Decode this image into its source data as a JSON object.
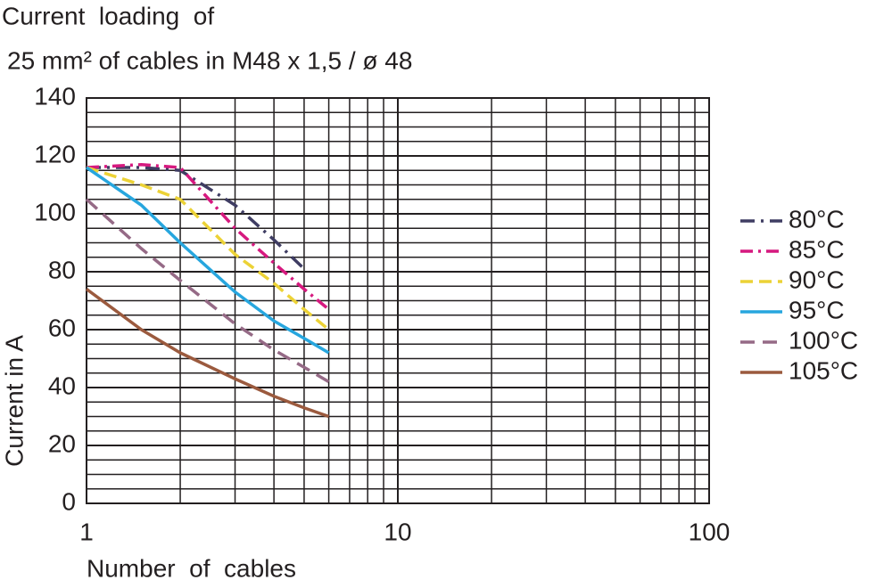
{
  "chart_data": {
    "type": "line",
    "title": "Current  loading  of",
    "subtitle": "25 mm² of cables in M48 x 1,5 / ø 48",
    "x_label": "Number  of  cables",
    "y_label": "Current in A",
    "x": [
      1,
      1.5,
      2,
      3,
      4,
      5,
      6
    ],
    "series": [
      {
        "name": "80°C",
        "color": "#3f3d63",
        "dash": "16 7 3 7",
        "values": [
          116,
          116,
          115,
          103,
          91,
          81,
          null
        ]
      },
      {
        "name": "85°C",
        "color": "#d6197f",
        "dash": "14 6 3 6",
        "values": [
          116,
          117,
          116,
          95,
          83,
          74,
          67
        ]
      },
      {
        "name": "90°C",
        "color": "#ecd236",
        "dash": "14 7",
        "values": [
          116,
          110,
          105,
          86,
          76,
          67,
          60
        ]
      },
      {
        "name": "95°C",
        "color": "#27a6de",
        "dash": "none",
        "values": [
          116,
          103,
          90,
          73,
          63,
          57,
          52
        ]
      },
      {
        "name": "100°C",
        "color": "#956a86",
        "dash": "16 9",
        "values": [
          105,
          88,
          77,
          62,
          53,
          47,
          42
        ]
      },
      {
        "name": "105°C",
        "color": "#9b5a3e",
        "dash": "none",
        "values": [
          74,
          60,
          52,
          43,
          37,
          33,
          30
        ]
      }
    ],
    "xlim": [
      1,
      100
    ],
    "xticks": [
      1,
      10,
      100
    ],
    "xscale": "log",
    "minor_xticks": [
      2,
      3,
      4,
      5,
      6,
      7,
      8,
      9,
      20,
      30,
      40,
      50,
      60,
      70,
      80,
      90
    ],
    "ylim": [
      0,
      140
    ],
    "yticks": [
      0,
      20,
      40,
      60,
      80,
      100,
      120,
      140
    ],
    "minor_yticks": [
      5,
      10,
      15,
      25,
      30,
      35,
      45,
      50,
      55,
      65,
      70,
      75,
      85,
      90,
      95,
      105,
      110,
      115,
      125,
      130,
      135
    ],
    "grid": true,
    "legend": "right"
  }
}
